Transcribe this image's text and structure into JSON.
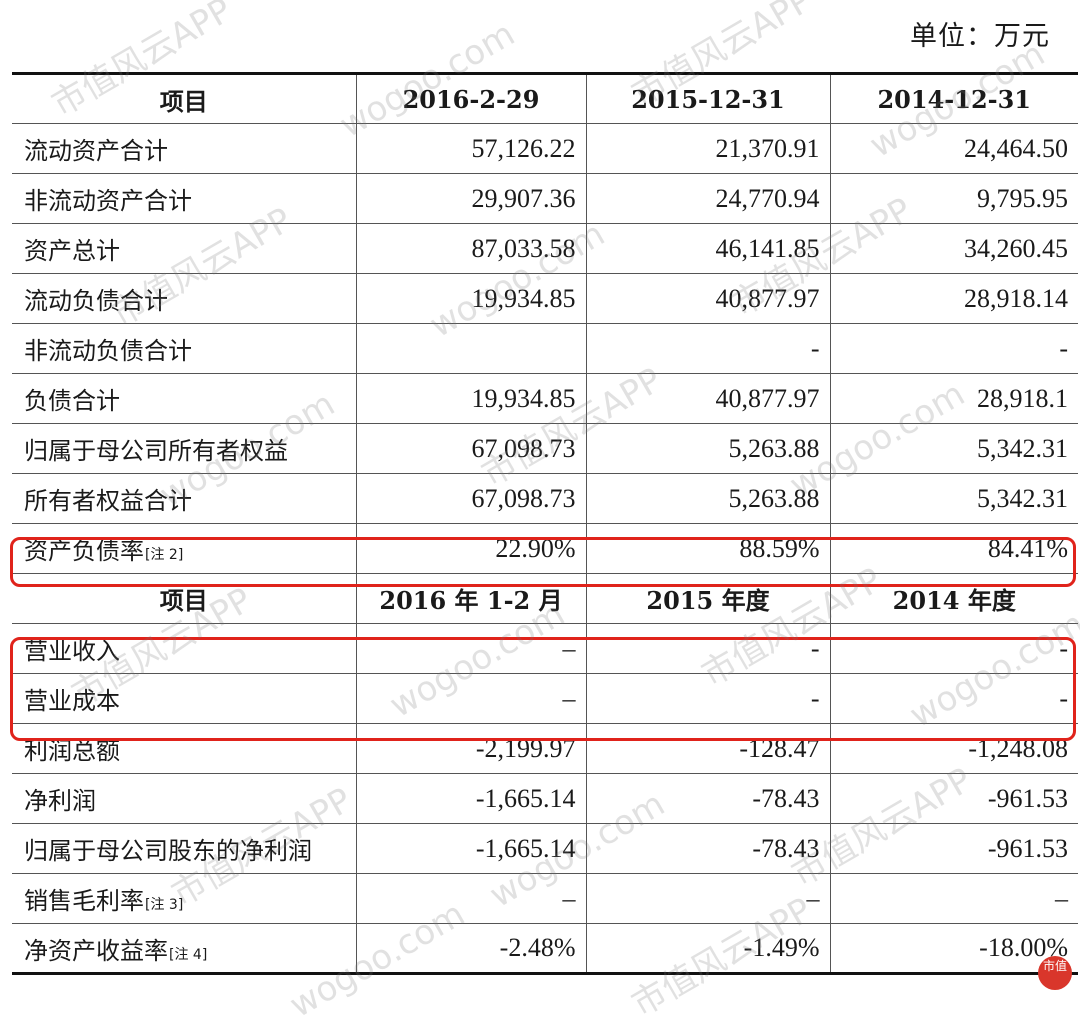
{
  "unit_label": "单位：万元",
  "header1": [
    "项目",
    "2016-2-29",
    "2015-12-31",
    "2014-12-31"
  ],
  "balance_rows": [
    {
      "label": "流动资产合计",
      "note": "",
      "v1": "57,126.22",
      "v2": "21,370.91",
      "v3": "24,464.50"
    },
    {
      "label": "非流动资产合计",
      "note": "",
      "v1": "29,907.36",
      "v2": "24,770.94",
      "v3": "9,795.95"
    },
    {
      "label": "资产总计",
      "note": "",
      "v1": "87,033.58",
      "v2": "46,141.85",
      "v3": "34,260.45"
    },
    {
      "label": "流动负债合计",
      "note": "",
      "v1": "19,934.85",
      "v2": "40,877.97",
      "v3": "28,918.14"
    },
    {
      "label": "非流动负债合计",
      "note": "",
      "v1": "",
      "v2": "-",
      "v3": "-"
    },
    {
      "label": "负债合计",
      "note": "",
      "v1": "19,934.85",
      "v2": "40,877.97",
      "v3": "28,918.1"
    },
    {
      "label": "归属于母公司所有者权益",
      "note": "",
      "v1": "67,098.73",
      "v2": "5,263.88",
      "v3": "5,342.31"
    },
    {
      "label": "所有者权益合计",
      "note": "",
      "v1": "67,098.73",
      "v2": "5,263.88",
      "v3": "5,342.31"
    },
    {
      "label": "资产负债率",
      "note": "[注 2]",
      "v1": "22.90%",
      "v2": "88.59%",
      "v3": "84.41%"
    }
  ],
  "header2": [
    "项目",
    "2016 年 1-2 月",
    "2015 年度",
    "2014 年度"
  ],
  "income_rows": [
    {
      "label": "营业收入",
      "note": "",
      "v1": "–",
      "v2": "-",
      "v3": "-"
    },
    {
      "label": "营业成本",
      "note": "",
      "v1": "–",
      "v2": "-",
      "v3": "-"
    },
    {
      "label": "利润总额",
      "note": "",
      "v1": "-2,199.97",
      "v2": "-128.47",
      "v3": "-1,248.08"
    },
    {
      "label": "净利润",
      "note": "",
      "v1": "-1,665.14",
      "v2": "-78.43",
      "v3": "-961.53"
    },
    {
      "label": "归属于母公司股东的净利润",
      "note": "",
      "v1": "-1,665.14",
      "v2": "-78.43",
      "v3": "-961.53"
    },
    {
      "label": "销售毛利率",
      "note": "[注 3]",
      "v1": "–",
      "v2": "–",
      "v3": "–"
    },
    {
      "label": "净资产收益率",
      "note": "[注 4]",
      "v1": "-2.48%",
      "v2": "-1.49%",
      "v3": "-18.00%"
    }
  ],
  "watermark": {
    "cn": "市值风云APP",
    "en": "wogoo.com"
  },
  "logo_text": "市值"
}
